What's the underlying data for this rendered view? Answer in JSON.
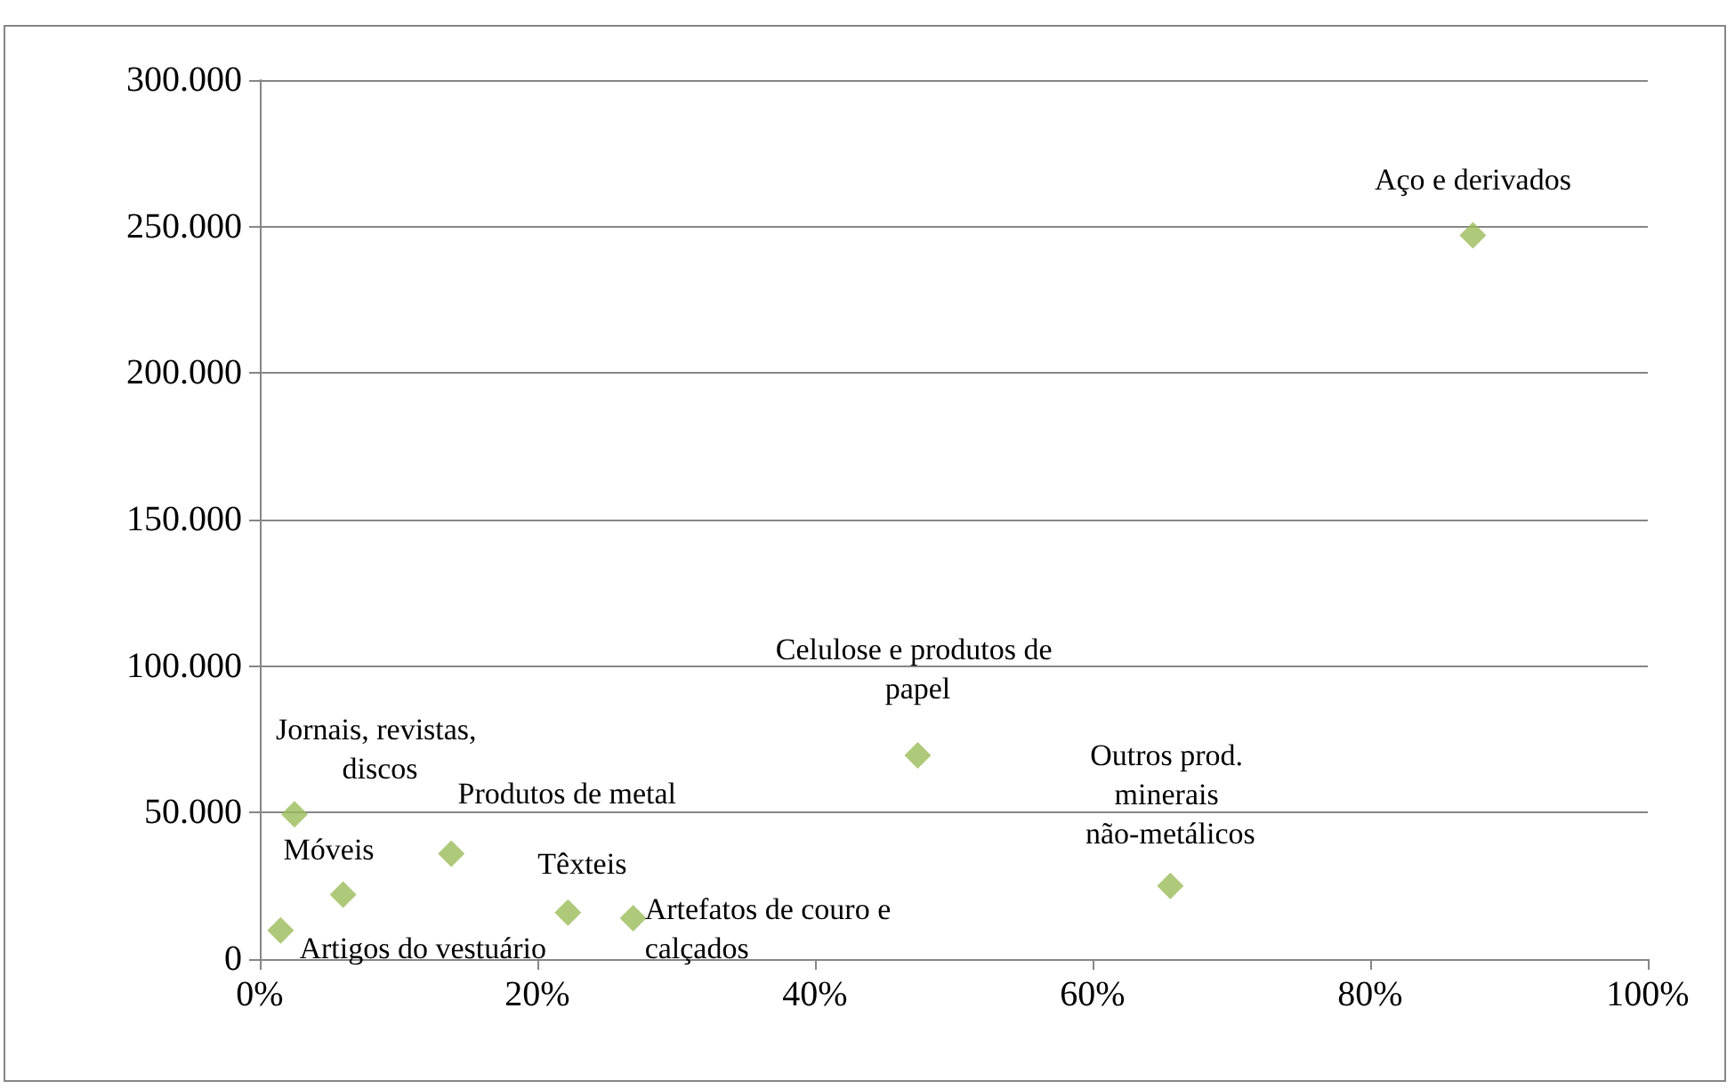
{
  "chart_data": {
    "type": "scatter",
    "marker": "diamond",
    "grid": "y",
    "series": [
      {
        "color": "#9bbb59",
        "x": [
          87.4,
          47.4,
          65.6,
          2.5,
          6.0,
          13.8,
          22.2,
          26.9,
          1.5
        ],
        "values": [
          247000,
          69500,
          25000,
          49400,
          22000,
          36000,
          15900,
          14000,
          9800
        ]
      }
    ],
    "annotations": [
      {
        "text": "Aço e derivados",
        "x": 87.4,
        "y": 247000
      },
      {
        "text": "Celulose e produtos de papel",
        "x": 47.4,
        "y": 69500
      },
      {
        "text": "Outros prod. minerais não-metálicos",
        "x": 65.6,
        "y": 25000
      },
      {
        "text": "Jornais, revistas, discos",
        "x": 2.5,
        "y": 49400
      },
      {
        "text": "Móveis",
        "x": 6.0,
        "y": 22000
      },
      {
        "text": "Produtos de metal",
        "x": 13.8,
        "y": 36000
      },
      {
        "text": "Têxteis",
        "x": 22.2,
        "y": 15900
      },
      {
        "text": "Artefatos de couro e calçados",
        "x": 26.9,
        "y": 14000
      },
      {
        "text": "Artigos do vestuário",
        "x": 1.5,
        "y": 9800
      }
    ],
    "xlim": [
      0,
      100
    ],
    "xticks": [
      {
        "value": 0,
        "label": "0%"
      },
      {
        "value": 20,
        "label": "20%"
      },
      {
        "value": 40,
        "label": "40%"
      },
      {
        "value": 60,
        "label": "60%"
      },
      {
        "value": 80,
        "label": "80%"
      },
      {
        "value": 100,
        "label": "100%"
      }
    ],
    "ylim": [
      0,
      300000
    ],
    "yticks": [
      {
        "value": 0,
        "label": "0"
      },
      {
        "value": 50000,
        "label": "50.000"
      },
      {
        "value": 100000,
        "label": "100.000"
      },
      {
        "value": 150000,
        "label": "150.000"
      },
      {
        "value": 200000,
        "label": "200.000"
      },
      {
        "value": 250000,
        "label": "250.000"
      },
      {
        "value": 300000,
        "label": "300.000"
      }
    ]
  }
}
